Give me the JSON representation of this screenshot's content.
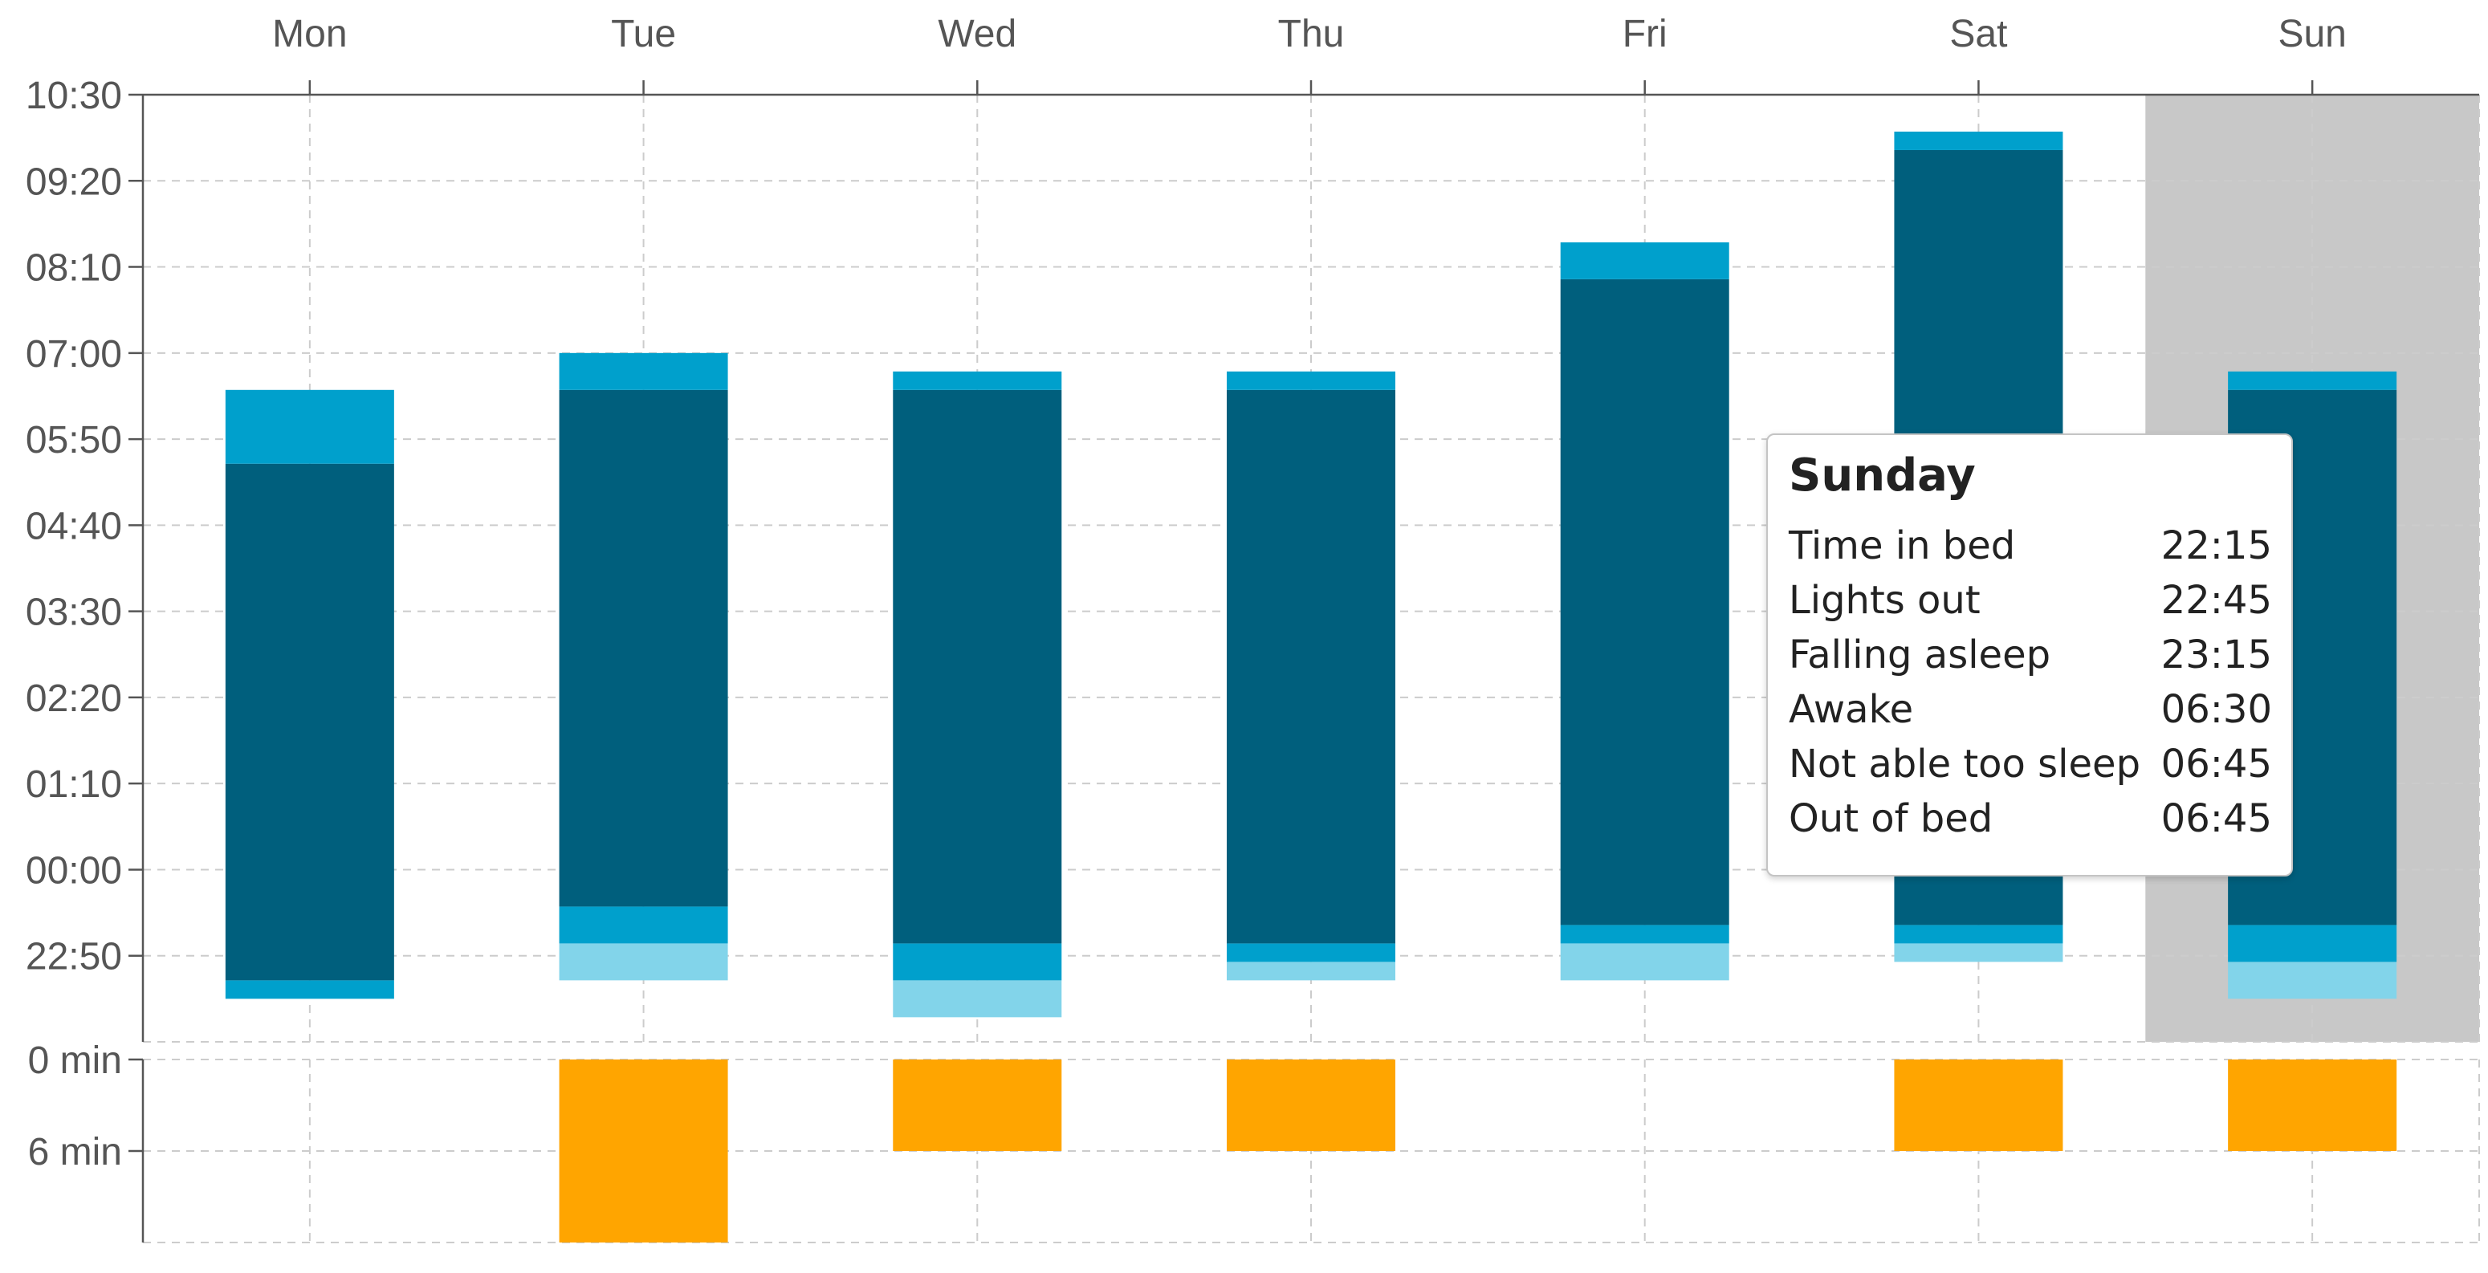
{
  "colors": {
    "in_bed": "#82d4ea",
    "lights_out": "#00a0cc",
    "asleep": "#005f7d",
    "not_able_to_sleep": "#00a0cc",
    "wake_time": "#ffa500",
    "highlight": "#c8c8c8"
  },
  "chart_data": {
    "type": "bar",
    "categories": [
      "Mon",
      "Tue",
      "Wed",
      "Thu",
      "Fri",
      "Sat",
      "Sun"
    ],
    "y_ticks": [
      "10:30",
      "09:20",
      "08:10",
      "07:00",
      "05:50",
      "04:40",
      "03:30",
      "02:20",
      "01:10",
      "00:00",
      "22:50"
    ],
    "ylim": [
      "21:40",
      "10:30"
    ],
    "wake_ticks": [
      "0 min",
      "6 min"
    ],
    "wake_ylim": [
      0,
      12
    ],
    "grid": true,
    "highlighted_category": "Sun",
    "series": [
      {
        "key": "in_bed",
        "values": [
          null,
          "22:30",
          "22:00",
          "22:30",
          "22:30",
          "22:45",
          "22:15"
        ]
      },
      {
        "key": "lights_out",
        "values": [
          "22:15",
          "23:00",
          "22:30",
          "22:45",
          "23:00",
          "23:00",
          "22:45"
        ]
      },
      {
        "key": "asleep",
        "values": [
          "22:30",
          "23:30",
          "23:00",
          "23:00",
          "23:15",
          "23:15",
          "23:15"
        ]
      },
      {
        "key": "awake",
        "values": [
          "05:30",
          "06:30",
          "06:30",
          "06:30",
          "08:00",
          "09:45",
          "06:30"
        ]
      },
      {
        "key": "out_of_bed",
        "values": [
          "06:30",
          "07:00",
          "06:45",
          "06:45",
          "08:30",
          "10:00",
          "06:45"
        ]
      }
    ],
    "wake_time_minutes": [
      0,
      12,
      6,
      6,
      0,
      6,
      6
    ]
  },
  "tooltip": {
    "title": "Sunday",
    "rows": [
      {
        "label": "Time in bed",
        "value": "22:15"
      },
      {
        "label": "Lights out",
        "value": "22:45"
      },
      {
        "label": "Falling asleep",
        "value": "23:15"
      },
      {
        "label": "Awake",
        "value": "06:30"
      },
      {
        "label": "Not able too sleep",
        "value": "06:45"
      },
      {
        "label": "Out of bed",
        "value": "06:45"
      }
    ]
  }
}
